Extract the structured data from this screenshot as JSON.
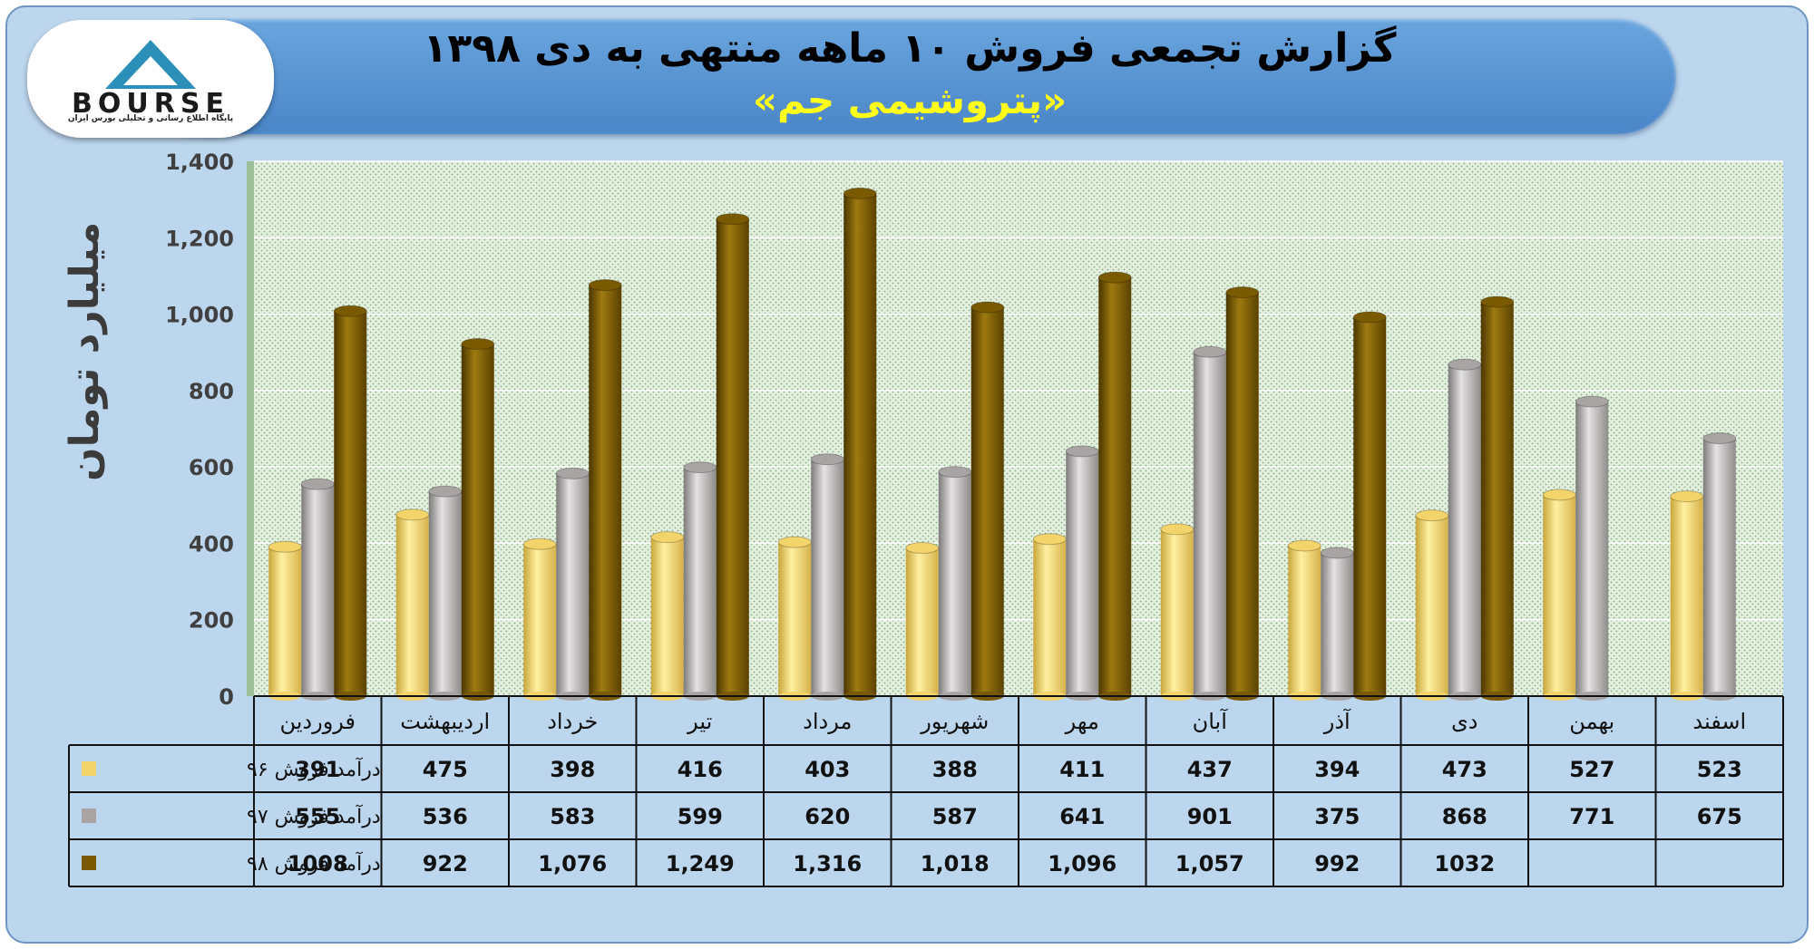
{
  "header": {
    "title": "گزارش تجمعی فروش ۱۰ ماهه منتهی به دی ۱۳۹۸",
    "subtitle": "«پتروشیمی جم»"
  },
  "logo": {
    "wordmark": "BOURSE",
    "caption": "پایگاه اطلاع رسانی و تحلیلی بورس ایران",
    "colors": {
      "primary": "#2b8fb8",
      "text": "#1a1a1a"
    }
  },
  "colors": {
    "background": "#bcd6ee",
    "banner": "#5a94d2",
    "title": "#000000",
    "subtitle": "#ffff1a",
    "series": [
      "#f3d46a",
      "#a8a4a4",
      "#7a5a00"
    ]
  },
  "chart_data": {
    "type": "bar",
    "ylabel": "میلیارد تومان",
    "ylim": [
      0,
      1400
    ],
    "yticks": [
      "0",
      "200",
      "400",
      "600",
      "800",
      "1,000",
      "1,200",
      "1,400"
    ],
    "ytick_values": [
      0,
      200,
      400,
      600,
      800,
      1000,
      1200,
      1400
    ],
    "grid": true,
    "legend": "table-left",
    "categories": [
      "فروردین",
      "اردیبهشت",
      "خرداد",
      "تیر",
      "مرداد",
      "شهریور",
      "مهر",
      "آبان",
      "آذر",
      "دی",
      "بهمن",
      "اسفند"
    ],
    "series": [
      {
        "name": "درآمد فروش ۹۶",
        "color": "#f3d46a",
        "values": [
          391,
          475,
          398,
          416,
          403,
          388,
          411,
          437,
          394,
          473,
          527,
          523
        ],
        "labels": [
          "391",
          "475",
          "398",
          "416",
          "403",
          "388",
          "411",
          "437",
          "394",
          "473",
          "527",
          "523"
        ]
      },
      {
        "name": "درآمد فروش ۹۷",
        "color": "#a8a4a4",
        "values": [
          555,
          536,
          583,
          599,
          620,
          587,
          641,
          901,
          375,
          868,
          771,
          675
        ],
        "labels": [
          "555",
          "536",
          "583",
          "599",
          "620",
          "587",
          "641",
          "901",
          "375",
          "868",
          "771",
          "675"
        ]
      },
      {
        "name": "درآمد فروش ۹۸",
        "color": "#7a5a00",
        "values": [
          1008,
          922,
          1076,
          1249,
          1316,
          1018,
          1096,
          1057,
          992,
          1032,
          null,
          null
        ],
        "labels": [
          "1008",
          "922",
          "1,076",
          "1,249",
          "1,316",
          "1,018",
          "1,096",
          "1,057",
          "992",
          "1032",
          "",
          ""
        ]
      }
    ]
  }
}
